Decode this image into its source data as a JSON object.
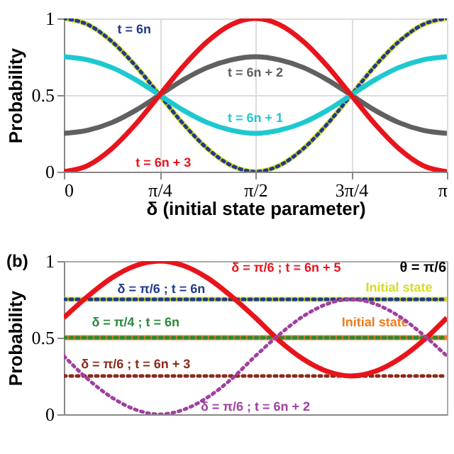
{
  "chart_data": [
    {
      "type": "line",
      "xlabel": "δ (initial state parameter)",
      "ylabel": "Probability",
      "x": [
        0,
        0.1963,
        0.3927,
        0.589,
        0.7854,
        0.9817,
        1.1781,
        1.3744,
        1.5708,
        1.7671,
        1.9635,
        2.1598,
        2.3562,
        2.5525,
        2.7489,
        2.9452,
        3.1416
      ],
      "xlim": [
        0,
        3.1416
      ],
      "xticks": [
        0,
        {
          "value": 0.7854,
          "label": "π/4"
        },
        {
          "value": 1.5708,
          "label": "π/2"
        },
        {
          "value": 2.3562,
          "label": "3π/4"
        },
        {
          "value": 3.1416,
          "label": "π"
        }
      ],
      "ylim": [
        0,
        1
      ],
      "yticks": [
        0,
        0.5,
        1
      ],
      "grid": true,
      "series": [
        {
          "color": "#d6dc2a",
          "line_style": "solid",
          "values": [
            1,
            0.96,
            0.85,
            0.69,
            0.5,
            0.31,
            0.15,
            0.04,
            0,
            0.04,
            0.15,
            0.31,
            0.5,
            0.69,
            0.85,
            0.96,
            1
          ]
        },
        {
          "name": "t = 6n",
          "color": "#1f3a8f",
          "line_style": "dotted",
          "values": [
            1,
            0.96,
            0.85,
            0.69,
            0.5,
            0.31,
            0.15,
            0.04,
            0,
            0.04,
            0.15,
            0.31,
            0.5,
            0.69,
            0.85,
            0.96,
            1
          ]
        },
        {
          "name": "t = 6n + 2",
          "color": "#606060",
          "line_style": "solid",
          "values": [
            0.25,
            0.27,
            0.32,
            0.4,
            0.5,
            0.6,
            0.68,
            0.73,
            0.75,
            0.73,
            0.68,
            0.6,
            0.5,
            0.4,
            0.32,
            0.27,
            0.25
          ]
        },
        {
          "name": "t = 6n + 1",
          "color": "#1ec8d0",
          "line_style": "solid",
          "values": [
            0.75,
            0.73,
            0.68,
            0.6,
            0.5,
            0.4,
            0.32,
            0.27,
            0.25,
            0.27,
            0.32,
            0.4,
            0.5,
            0.6,
            0.68,
            0.73,
            0.75
          ]
        },
        {
          "name": "t = 6n + 3",
          "color": "#e8141c",
          "line_style": "solid",
          "values": [
            0,
            0.04,
            0.15,
            0.31,
            0.5,
            0.69,
            0.85,
            0.96,
            1,
            0.96,
            0.85,
            0.69,
            0.5,
            0.31,
            0.15,
            0.04,
            0
          ]
        }
      ]
    },
    {
      "type": "line",
      "ylabel": "Probability",
      "annotations": [
        "(b)",
        "θ = π/6"
      ],
      "categories": [
        null,
        null,
        null,
        null,
        null,
        null,
        null,
        null,
        null,
        null,
        null,
        null,
        null,
        null,
        null,
        null,
        null
      ],
      "ylim": [
        0,
        1
      ],
      "yticks": [
        0,
        0.5,
        1
      ],
      "tick_labels": "y",
      "series": [
        {
          "name": "Initial state",
          "color": "#d6dc2a",
          "line_style": "solid",
          "values": [
            0.75,
            0.75,
            0.75,
            0.75,
            0.75,
            0.75,
            0.75,
            0.75,
            0.75,
            0.75,
            0.75,
            0.75,
            0.75,
            0.75,
            0.75,
            0.75,
            0.75
          ]
        },
        {
          "name": "δ = π/6 ; t = 6n",
          "color": "#1f3a8f",
          "line_style": "dotted",
          "values": [
            0.75,
            0.75,
            0.75,
            0.75,
            0.75,
            0.75,
            0.75,
            0.75,
            0.75,
            0.75,
            0.75,
            0.75,
            0.75,
            0.75,
            0.75,
            0.75,
            0.75
          ]
        },
        {
          "name": "Initial state",
          "color": "#f07c1e",
          "line_style": "solid",
          "values": [
            0.5,
            0.5,
            0.5,
            0.5,
            0.5,
            0.5,
            0.5,
            0.5,
            0.5,
            0.5,
            0.5,
            0.5,
            0.5,
            0.5,
            0.5,
            0.5,
            0.5
          ]
        },
        {
          "name": "δ = π/4 ; t = 6n",
          "color": "#2a8a3a",
          "line_style": "dotted",
          "values": [
            0.5,
            0.5,
            0.5,
            0.5,
            0.5,
            0.5,
            0.5,
            0.5,
            0.5,
            0.5,
            0.5,
            0.5,
            0.5,
            0.5,
            0.5,
            0.5,
            0.5
          ]
        },
        {
          "name": "δ = π/6 ; t = 6n + 3",
          "color": "#8b2a1a",
          "line_style": "dotted",
          "values": [
            0.25,
            0.25,
            0.25,
            0.25,
            0.25,
            0.25,
            0.25,
            0.25,
            0.25,
            0.25,
            0.25,
            0.25,
            0.25,
            0.25,
            0.25,
            0.25,
            0.25
          ]
        },
        {
          "name": "δ = π/6 ; t = 6n + 5",
          "color": "#e8141c",
          "line_style": "solid",
          "values": [
            0.63,
            0.77,
            0.89,
            0.97,
            1,
            0.97,
            0.89,
            0.77,
            0.63,
            0.48,
            0.36,
            0.28,
            0.25,
            0.28,
            0.36,
            0.48,
            0.63
          ]
        },
        {
          "name": "δ = π/6 ; t = 6n + 2",
          "color": "#a040a0",
          "line_style": "dotted",
          "values": [
            0.38,
            0.23,
            0.11,
            0.03,
            0,
            0.03,
            0.11,
            0.23,
            0.38,
            0.52,
            0.64,
            0.72,
            0.75,
            0.72,
            0.64,
            0.52,
            0.38
          ]
        }
      ]
    }
  ]
}
